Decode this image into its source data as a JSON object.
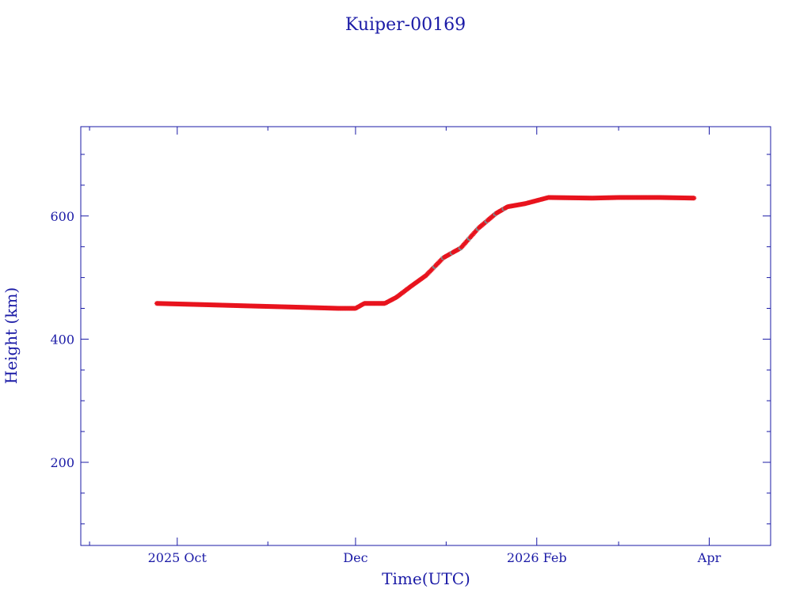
{
  "chart_data": {
    "type": "scatter",
    "title": "Kuiper-00169",
    "xlabel": "Time(UTC)",
    "ylabel": "Height (km)",
    "xlim": [
      "2025-08-29",
      "2026-04-22"
    ],
    "ylim": [
      65,
      745
    ],
    "x_ticks": [
      {
        "date": "2025-10-01",
        "label": "2025 Oct"
      },
      {
        "date": "2025-12-01",
        "label": "Dec"
      },
      {
        "date": "2026-02-01",
        "label": "2026 Feb"
      },
      {
        "date": "2026-04-01",
        "label": "Apr"
      }
    ],
    "y_ticks": [
      {
        "value": 200,
        "label": "200"
      },
      {
        "value": 400,
        "label": "400"
      },
      {
        "value": 600,
        "label": "600"
      }
    ],
    "grid": false,
    "colors": {
      "axis": "#1a1aa6",
      "marker": "#e8141e",
      "marker_alt": "#5fa8a8"
    },
    "series": [
      {
        "x": [
          "2025-09-24",
          "2025-10-10",
          "2025-10-25",
          "2025-11-10",
          "2025-11-25",
          "2025-12-01",
          "2025-12-04",
          "2025-12-08",
          "2025-12-11",
          "2025-12-15",
          "2025-12-20",
          "2025-12-25",
          "2025-12-31",
          "2026-01-06",
          "2026-01-12",
          "2026-01-18",
          "2026-01-22",
          "2026-01-28",
          "2026-02-05",
          "2026-02-20",
          "2026-03-01",
          "2026-03-15",
          "2026-03-27"
        ],
        "y": [
          458,
          456,
          454,
          452,
          450,
          450,
          458,
          458,
          458,
          468,
          486,
          503,
          532,
          548,
          580,
          604,
          615,
          620,
          630,
          629,
          630,
          630,
          629
        ]
      }
    ]
  }
}
